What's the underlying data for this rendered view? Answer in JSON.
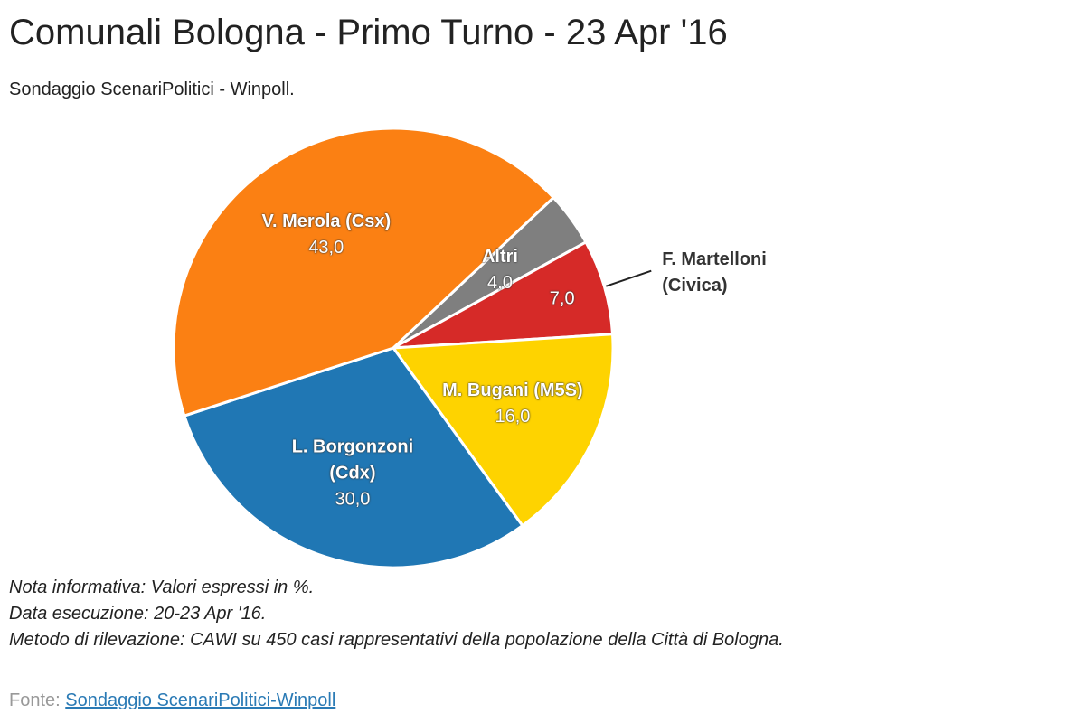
{
  "chart_data": {
    "type": "pie",
    "title": "Comunali Bologna - Primo Turno - 23 Apr '16",
    "subtitle": "Sondaggio ScenariPolitici - Winpoll.",
    "categories": [
      "Altri",
      "F. Martelloni (Civica)",
      "M. Bugani (M5S)",
      "L. Borgonzoni (Cdx)",
      "V. Merola (Csx)"
    ],
    "values": [
      4,
      7,
      16,
      30,
      43
    ],
    "value_labels": [
      "4,0",
      "7,0",
      "16,0",
      "30,0",
      "43,0"
    ],
    "colors": [
      "#7f7f7f",
      "#d62a28",
      "#fed300",
      "#2077b4",
      "#fb8013"
    ]
  },
  "notes": [
    "Nota informativa: Valori espressi in %.",
    "Data esecuzione: 20-23 Apr '16.",
    "Metodo di rilevazione: CAWI su 450 casi rappresentativi della popolazione della Città di Bologna."
  ],
  "source": {
    "label": "Fonte:",
    "link": "Sondaggio ScenariPolitici-Winpoll"
  }
}
